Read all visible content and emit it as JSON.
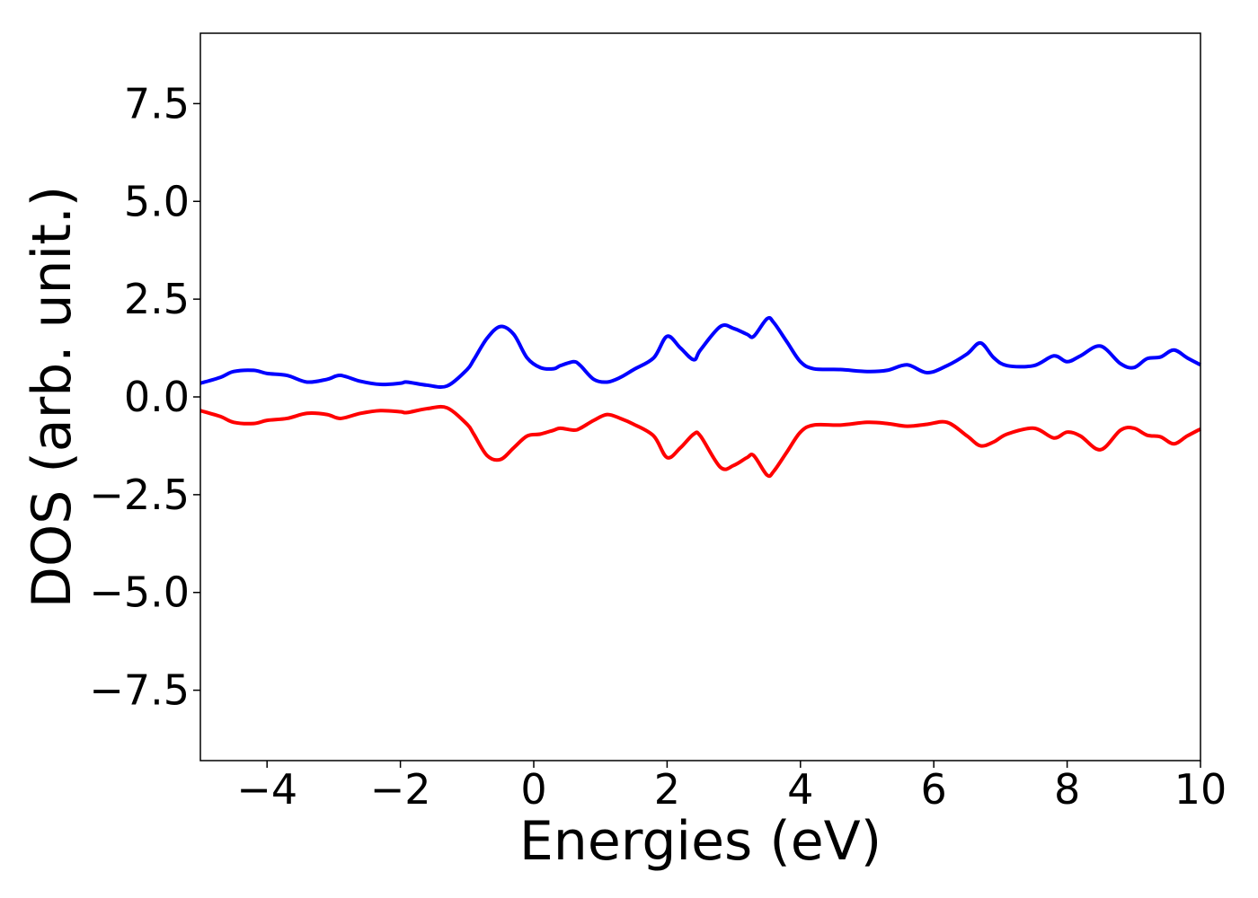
{
  "chart_data": {
    "type": "line",
    "title": "",
    "xlabel": "Energies (eV)",
    "ylabel": "DOS (arb. unit.)",
    "xlim": [
      -5,
      10
    ],
    "ylim": [
      -9.3,
      9.3
    ],
    "xticks": [
      -4,
      -2,
      0,
      2,
      4,
      6,
      8,
      10
    ],
    "xtick_labels": [
      "−4",
      "−2",
      "0",
      "2",
      "4",
      "6",
      "8",
      "10"
    ],
    "yticks": [
      7.5,
      5.0,
      2.5,
      0.0,
      -2.5,
      -5.0,
      -7.5
    ],
    "ytick_labels": [
      "7.5",
      "5.0",
      "2.5",
      "0.0",
      "−2.5",
      "−5.0",
      "−7.5"
    ],
    "grid": false,
    "legend": "none",
    "series": [
      {
        "color": "#0000ff",
        "x": [
          -5.0,
          -4.7,
          -4.5,
          -4.2,
          -4.0,
          -3.7,
          -3.4,
          -3.1,
          -2.9,
          -2.6,
          -2.3,
          -2.0,
          -1.9,
          -1.6,
          -1.3,
          -1.0,
          -0.9,
          -0.7,
          -0.5,
          -0.3,
          -0.1,
          0.1,
          0.3,
          0.4,
          0.6,
          0.7,
          0.9,
          1.1,
          1.3,
          1.5,
          1.8,
          2.0,
          2.2,
          2.4,
          2.5,
          2.8,
          3.0,
          3.2,
          3.3,
          3.5,
          3.6,
          3.8,
          4.0,
          4.2,
          4.6,
          5.0,
          5.3,
          5.6,
          5.9,
          6.2,
          6.5,
          6.7,
          6.9,
          7.1,
          7.5,
          7.8,
          8.0,
          8.2,
          8.5,
          8.8,
          9.0,
          9.2,
          9.4,
          9.6,
          9.8,
          10.0
        ],
        "y": [
          0.35,
          0.5,
          0.65,
          0.68,
          0.6,
          0.55,
          0.38,
          0.45,
          0.55,
          0.4,
          0.32,
          0.35,
          0.38,
          0.3,
          0.28,
          0.7,
          0.95,
          1.5,
          1.8,
          1.6,
          1.0,
          0.75,
          0.72,
          0.8,
          0.9,
          0.8,
          0.45,
          0.38,
          0.5,
          0.7,
          1.0,
          1.55,
          1.25,
          0.95,
          1.2,
          1.8,
          1.75,
          1.6,
          1.55,
          2.0,
          1.9,
          1.4,
          0.9,
          0.72,
          0.7,
          0.65,
          0.68,
          0.82,
          0.62,
          0.8,
          1.1,
          1.38,
          1.0,
          0.8,
          0.8,
          1.05,
          0.9,
          1.05,
          1.3,
          0.85,
          0.75,
          0.98,
          1.02,
          1.2,
          1.0,
          0.82
        ]
      },
      {
        "color": "#ff0000",
        "x": [
          -5.0,
          -4.7,
          -4.5,
          -4.2,
          -4.0,
          -3.7,
          -3.4,
          -3.1,
          -2.9,
          -2.6,
          -2.3,
          -2.0,
          -1.9,
          -1.6,
          -1.3,
          -1.0,
          -0.9,
          -0.7,
          -0.5,
          -0.3,
          -0.1,
          0.1,
          0.3,
          0.4,
          0.6,
          0.7,
          0.9,
          1.1,
          1.3,
          1.5,
          1.8,
          2.0,
          2.2,
          2.4,
          2.5,
          2.8,
          3.0,
          3.2,
          3.3,
          3.5,
          3.6,
          3.8,
          4.0,
          4.2,
          4.6,
          5.0,
          5.3,
          5.6,
          5.9,
          6.2,
          6.5,
          6.7,
          6.9,
          7.1,
          7.5,
          7.8,
          8.0,
          8.2,
          8.5,
          8.8,
          9.0,
          9.2,
          9.4,
          9.6,
          9.8,
          10.0
        ],
        "y": [
          -0.35,
          -0.5,
          -0.65,
          -0.68,
          -0.6,
          -0.55,
          -0.42,
          -0.45,
          -0.55,
          -0.42,
          -0.35,
          -0.38,
          -0.4,
          -0.3,
          -0.28,
          -0.7,
          -0.95,
          -1.5,
          -1.6,
          -1.3,
          -1.0,
          -0.95,
          -0.85,
          -0.8,
          -0.85,
          -0.8,
          -0.6,
          -0.45,
          -0.55,
          -0.7,
          -1.0,
          -1.55,
          -1.3,
          -0.95,
          -1.0,
          -1.8,
          -1.75,
          -1.55,
          -1.5,
          -2.0,
          -1.9,
          -1.4,
          -0.9,
          -0.72,
          -0.72,
          -0.65,
          -0.68,
          -0.75,
          -0.7,
          -0.65,
          -1.0,
          -1.25,
          -1.15,
          -0.95,
          -0.8,
          -1.05,
          -0.9,
          -1.0,
          -1.35,
          -0.85,
          -0.8,
          -0.98,
          -1.02,
          -1.2,
          -1.0,
          -0.82
        ]
      }
    ]
  }
}
